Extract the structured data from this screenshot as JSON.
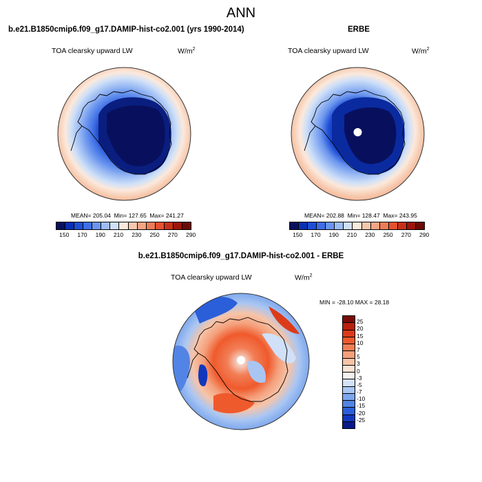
{
  "figure_title": "ANN",
  "panels": {
    "model": {
      "title": "b.e21.B1850cmip6.f09_g17.DAMIP-hist-co2.001 (yrs 1990-2014)",
      "variable": "TOA clearsky upward LW",
      "units": "W/m",
      "units_exp": "2",
      "stats": {
        "mean_label": "MEAN=",
        "mean": "205.04",
        "min_label": "Min=",
        "min": "127.65",
        "max_label": "Max=",
        "max": "241.27"
      }
    },
    "obs": {
      "title": "ERBE",
      "variable": "TOA clearsky upward LW",
      "units": "W/m",
      "units_exp": "2",
      "stats": {
        "mean_label": "MEAN=",
        "mean": "202.88",
        "min_label": "Min=",
        "min": "128.47",
        "max_label": "Max=",
        "max": "243.95"
      }
    },
    "diff": {
      "title": "b.e21.B1850cmip6.f09_g17.DAMIP-hist-co2.001 - ERBE",
      "variable": "TOA clearsky upward LW",
      "units": "W/m",
      "units_exp": "2",
      "range_text": "MIN = -28.10 MAX =  28.18"
    }
  },
  "colorbar_abs": {
    "labels": [
      "150",
      "170",
      "190",
      "210",
      "230",
      "250",
      "270",
      "290"
    ],
    "colors": [
      "#08105e",
      "#0a2fb0",
      "#1f4fd6",
      "#3f6fe6",
      "#6a95ee",
      "#9ebdf4",
      "#cfe0f8",
      "#fbe9dc",
      "#f7c8ad",
      "#f4a584",
      "#ef7c58",
      "#e4522f",
      "#c83118",
      "#9e150a",
      "#6e0a05"
    ]
  },
  "colorbar_diff": {
    "labels": [
      "25",
      "20",
      "15",
      "10",
      "7",
      "5",
      "3",
      "0",
      "-3",
      "-5",
      "-7",
      "-10",
      "-15",
      "-20",
      "-25"
    ],
    "colors": [
      "#7a0a05",
      "#b81f0c",
      "#dc3b1a",
      "#ef5a2c",
      "#f27e56",
      "#f4a07c",
      "#f7c4a8",
      "#fbe3d4",
      "#f4f1ee",
      "#d3e2f8",
      "#a9c6f3",
      "#7ca6ec",
      "#5284e5",
      "#2b5fd9",
      "#1237bd",
      "#08188a"
    ]
  },
  "colors": {
    "coastline": "#000000",
    "circle_border": "#333333"
  }
}
